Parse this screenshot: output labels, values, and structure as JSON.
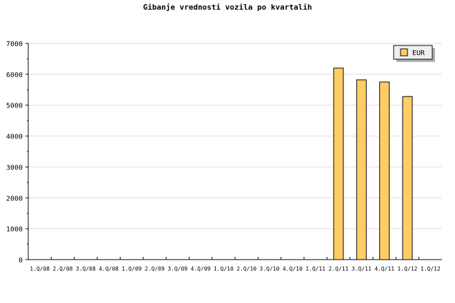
{
  "chart_data": {
    "type": "bar",
    "title": "Gibanje vrednosti vozila po kvartalih",
    "xlabel": "",
    "ylabel": "",
    "ylim": [
      0,
      7000
    ],
    "yticks": [
      0,
      1000,
      2000,
      3000,
      4000,
      5000,
      6000,
      7000
    ],
    "grid": true,
    "legend_placement": "top-right",
    "categories": [
      "1.Q/08",
      "2.Q/08",
      "3.Q/08",
      "4.Q/08",
      "1.Q/09",
      "2.Q/09",
      "3.Q/09",
      "4.Q/09",
      "1.Q/10",
      "2.Q/10",
      "3.Q/10",
      "4.Q/10",
      "1.Q/11",
      "2.Q/11",
      "3.Q/11",
      "4.Q/11",
      "1.Q/12",
      "1.Q/12"
    ],
    "series": [
      {
        "name": "EUR",
        "color": "#ffcc66",
        "values": [
          null,
          null,
          null,
          null,
          null,
          null,
          null,
          null,
          null,
          null,
          null,
          null,
          null,
          6200,
          5820,
          5750,
          5280,
          null
        ]
      }
    ]
  }
}
